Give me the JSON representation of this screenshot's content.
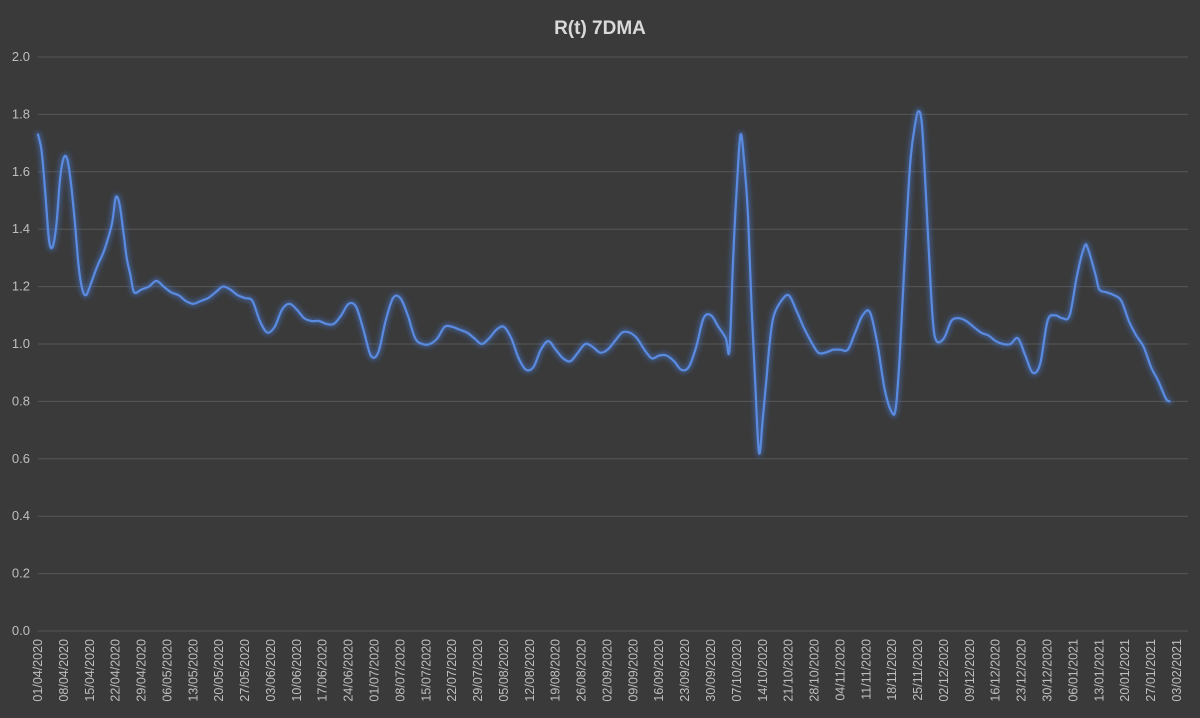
{
  "chart_data": {
    "type": "line",
    "title": "R(t) 7DMA",
    "xlabel": "",
    "ylabel": "",
    "ylim": [
      0,
      2
    ],
    "yticks": [
      "0.0",
      "0.2",
      "0.4",
      "0.6",
      "0.8",
      "1.0",
      "1.2",
      "1.4",
      "1.6",
      "1.8",
      "2.0"
    ],
    "grid": true,
    "legend": "none",
    "x_start": "01/04/2020",
    "x_end": "06/02/2021",
    "xtick_labels": [
      "01/04/2020",
      "08/04/2020",
      "15/04/2020",
      "22/04/2020",
      "29/04/2020",
      "06/05/2020",
      "13/05/2020",
      "20/05/2020",
      "27/05/2020",
      "03/06/2020",
      "10/06/2020",
      "17/06/2020",
      "24/06/2020",
      "01/07/2020",
      "08/07/2020",
      "15/07/2020",
      "22/07/2020",
      "29/07/2020",
      "05/08/2020",
      "12/08/2020",
      "19/08/2020",
      "26/08/2020",
      "02/09/2020",
      "09/09/2020",
      "16/09/2020",
      "23/09/2020",
      "30/09/2020",
      "07/10/2020",
      "14/10/2020",
      "21/10/2020",
      "28/10/2020",
      "04/11/2020",
      "11/11/2020",
      "18/11/2020",
      "25/11/2020",
      "02/12/2020",
      "09/12/2020",
      "16/12/2020",
      "23/12/2020",
      "30/12/2020",
      "06/01/2021",
      "13/01/2021",
      "20/01/2021",
      "27/01/2021",
      "03/02/2021"
    ],
    "series": [
      {
        "color": "#4472c4",
        "points": [
          [
            "01/04/2020",
            1.73
          ],
          [
            "02/04/2020",
            1.67
          ],
          [
            "03/04/2020",
            1.52
          ],
          [
            "04/04/2020",
            1.36
          ],
          [
            "05/04/2020",
            1.34
          ],
          [
            "06/04/2020",
            1.42
          ],
          [
            "07/04/2020",
            1.58
          ],
          [
            "08/04/2020",
            1.65
          ],
          [
            "09/04/2020",
            1.64
          ],
          [
            "10/04/2020",
            1.55
          ],
          [
            "11/04/2020",
            1.42
          ],
          [
            "12/04/2020",
            1.27
          ],
          [
            "13/04/2020",
            1.19
          ],
          [
            "14/04/2020",
            1.17
          ],
          [
            "15/04/2020",
            1.2
          ],
          [
            "17/04/2020",
            1.27
          ],
          [
            "19/04/2020",
            1.33
          ],
          [
            "21/04/2020",
            1.42
          ],
          [
            "22/04/2020",
            1.51
          ],
          [
            "23/04/2020",
            1.49
          ],
          [
            "24/04/2020",
            1.4
          ],
          [
            "25/04/2020",
            1.3
          ],
          [
            "26/04/2020",
            1.24
          ],
          [
            "27/04/2020",
            1.18
          ],
          [
            "29/04/2020",
            1.19
          ],
          [
            "01/05/2020",
            1.2
          ],
          [
            "03/05/2020",
            1.22
          ],
          [
            "05/05/2020",
            1.2
          ],
          [
            "07/05/2020",
            1.18
          ],
          [
            "09/05/2020",
            1.17
          ],
          [
            "11/05/2020",
            1.15
          ],
          [
            "13/05/2020",
            1.14
          ],
          [
            "15/05/2020",
            1.15
          ],
          [
            "17/05/2020",
            1.16
          ],
          [
            "19/05/2020",
            1.18
          ],
          [
            "21/05/2020",
            1.2
          ],
          [
            "23/05/2020",
            1.19
          ],
          [
            "25/05/2020",
            1.17
          ],
          [
            "27/05/2020",
            1.16
          ],
          [
            "29/05/2020",
            1.15
          ],
          [
            "31/05/2020",
            1.08
          ],
          [
            "02/06/2020",
            1.04
          ],
          [
            "04/06/2020",
            1.06
          ],
          [
            "06/06/2020",
            1.12
          ],
          [
            "08/06/2020",
            1.14
          ],
          [
            "10/06/2020",
            1.12
          ],
          [
            "12/06/2020",
            1.09
          ],
          [
            "14/06/2020",
            1.08
          ],
          [
            "16/06/2020",
            1.08
          ],
          [
            "18/06/2020",
            1.07
          ],
          [
            "20/06/2020",
            1.07
          ],
          [
            "22/06/2020",
            1.1
          ],
          [
            "24/06/2020",
            1.14
          ],
          [
            "26/06/2020",
            1.13
          ],
          [
            "28/06/2020",
            1.05
          ],
          [
            "30/06/2020",
            0.96
          ],
          [
            "02/07/2020",
            0.97
          ],
          [
            "04/07/2020",
            1.08
          ],
          [
            "06/07/2020",
            1.16
          ],
          [
            "08/07/2020",
            1.16
          ],
          [
            "10/07/2020",
            1.1
          ],
          [
            "12/07/2020",
            1.02
          ],
          [
            "14/07/2020",
            1.0
          ],
          [
            "16/07/2020",
            1.0
          ],
          [
            "18/07/2020",
            1.02
          ],
          [
            "20/07/2020",
            1.06
          ],
          [
            "22/07/2020",
            1.06
          ],
          [
            "24/07/2020",
            1.05
          ],
          [
            "26/07/2020",
            1.04
          ],
          [
            "28/07/2020",
            1.02
          ],
          [
            "30/07/2020",
            1.0
          ],
          [
            "01/08/2020",
            1.02
          ],
          [
            "03/08/2020",
            1.05
          ],
          [
            "05/08/2020",
            1.06
          ],
          [
            "07/08/2020",
            1.02
          ],
          [
            "09/08/2020",
            0.95
          ],
          [
            "11/08/2020",
            0.91
          ],
          [
            "13/08/2020",
            0.92
          ],
          [
            "15/08/2020",
            0.98
          ],
          [
            "17/08/2020",
            1.01
          ],
          [
            "19/08/2020",
            0.98
          ],
          [
            "21/08/2020",
            0.95
          ],
          [
            "23/08/2020",
            0.94
          ],
          [
            "25/08/2020",
            0.97
          ],
          [
            "27/08/2020",
            1.0
          ],
          [
            "29/08/2020",
            0.99
          ],
          [
            "31/08/2020",
            0.97
          ],
          [
            "02/09/2020",
            0.98
          ],
          [
            "04/09/2020",
            1.01
          ],
          [
            "06/09/2020",
            1.04
          ],
          [
            "08/09/2020",
            1.04
          ],
          [
            "10/09/2020",
            1.02
          ],
          [
            "12/09/2020",
            0.98
          ],
          [
            "14/09/2020",
            0.95
          ],
          [
            "16/09/2020",
            0.96
          ],
          [
            "18/09/2020",
            0.96
          ],
          [
            "20/09/2020",
            0.94
          ],
          [
            "22/09/2020",
            0.91
          ],
          [
            "24/09/2020",
            0.92
          ],
          [
            "26/09/2020",
            0.99
          ],
          [
            "28/09/2020",
            1.09
          ],
          [
            "30/09/2020",
            1.1
          ],
          [
            "02/10/2020",
            1.06
          ],
          [
            "04/10/2020",
            1.02
          ],
          [
            "05/10/2020",
            0.98
          ],
          [
            "06/10/2020",
            1.3
          ],
          [
            "07/10/2020",
            1.55
          ],
          [
            "08/10/2020",
            1.73
          ],
          [
            "09/10/2020",
            1.63
          ],
          [
            "10/10/2020",
            1.45
          ],
          [
            "11/10/2020",
            1.12
          ],
          [
            "12/10/2020",
            0.85
          ],
          [
            "13/10/2020",
            0.62
          ],
          [
            "14/10/2020",
            0.74
          ],
          [
            "15/10/2020",
            0.88
          ],
          [
            "16/10/2020",
            1.02
          ],
          [
            "17/10/2020",
            1.1
          ],
          [
            "19/10/2020",
            1.15
          ],
          [
            "21/10/2020",
            1.17
          ],
          [
            "23/10/2020",
            1.12
          ],
          [
            "25/10/2020",
            1.06
          ],
          [
            "27/10/2020",
            1.01
          ],
          [
            "29/10/2020",
            0.97
          ],
          [
            "31/10/2020",
            0.97
          ],
          [
            "02/11/2020",
            0.98
          ],
          [
            "04/11/2020",
            0.98
          ],
          [
            "06/11/2020",
            0.98
          ],
          [
            "08/11/2020",
            1.04
          ],
          [
            "10/11/2020",
            1.1
          ],
          [
            "12/11/2020",
            1.11
          ],
          [
            "14/11/2020",
            1.0
          ],
          [
            "16/11/2020",
            0.84
          ],
          [
            "18/11/2020",
            0.76
          ],
          [
            "19/11/2020",
            0.78
          ],
          [
            "20/11/2020",
            0.95
          ],
          [
            "21/11/2020",
            1.2
          ],
          [
            "22/11/2020",
            1.45
          ],
          [
            "23/11/2020",
            1.65
          ],
          [
            "24/11/2020",
            1.75
          ],
          [
            "25/11/2020",
            1.81
          ],
          [
            "26/11/2020",
            1.77
          ],
          [
            "27/11/2020",
            1.55
          ],
          [
            "28/11/2020",
            1.3
          ],
          [
            "29/11/2020",
            1.08
          ],
          [
            "30/11/2020",
            1.01
          ],
          [
            "02/12/2020",
            1.02
          ],
          [
            "04/12/2020",
            1.08
          ],
          [
            "06/12/2020",
            1.09
          ],
          [
            "08/12/2020",
            1.08
          ],
          [
            "10/12/2020",
            1.06
          ],
          [
            "12/12/2020",
            1.04
          ],
          [
            "14/12/2020",
            1.03
          ],
          [
            "16/12/2020",
            1.01
          ],
          [
            "18/12/2020",
            1.0
          ],
          [
            "20/12/2020",
            1.0
          ],
          [
            "22/12/2020",
            1.02
          ],
          [
            "24/12/2020",
            0.96
          ],
          [
            "26/12/2020",
            0.9
          ],
          [
            "28/12/2020",
            0.93
          ],
          [
            "30/12/2020",
            1.08
          ],
          [
            "01/01/2021",
            1.1
          ],
          [
            "03/01/2021",
            1.09
          ],
          [
            "05/01/2021",
            1.1
          ],
          [
            "07/01/2021",
            1.24
          ],
          [
            "09/01/2021",
            1.34
          ],
          [
            "10/01/2021",
            1.33
          ],
          [
            "12/01/2021",
            1.24
          ],
          [
            "13/01/2021",
            1.19
          ],
          [
            "15/01/2021",
            1.18
          ],
          [
            "17/01/2021",
            1.17
          ],
          [
            "19/01/2021",
            1.15
          ],
          [
            "21/01/2021",
            1.08
          ],
          [
            "23/01/2021",
            1.03
          ],
          [
            "25/01/2021",
            0.99
          ],
          [
            "27/01/2021",
            0.92
          ],
          [
            "29/01/2021",
            0.87
          ],
          [
            "31/01/2021",
            0.81
          ],
          [
            "01/02/2021",
            0.8
          ]
        ]
      }
    ]
  }
}
